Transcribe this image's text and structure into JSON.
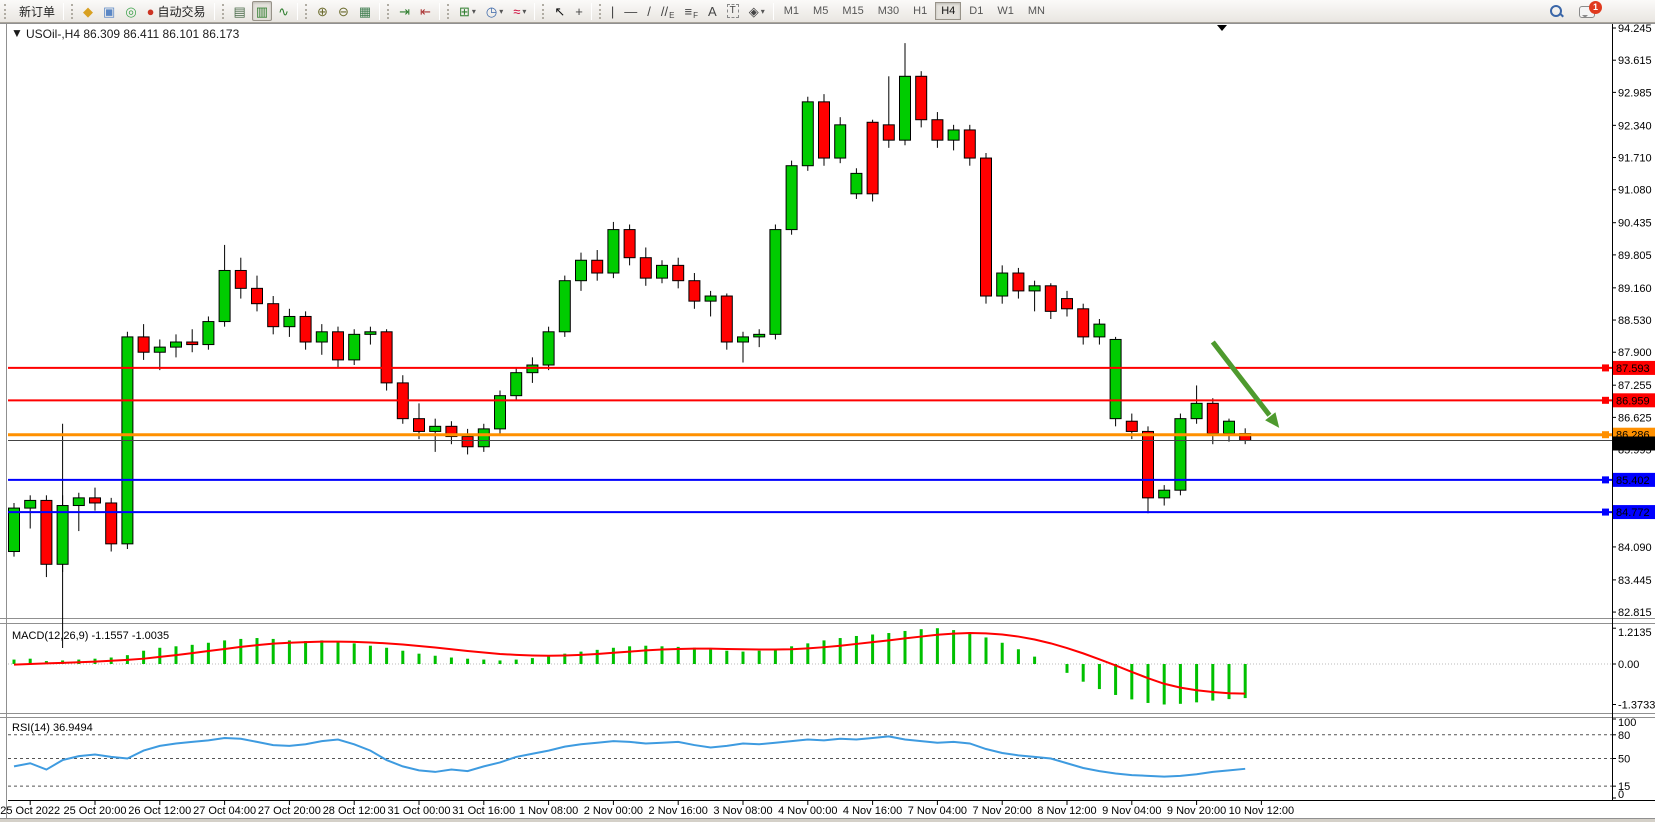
{
  "toolbar": {
    "new_order_label": "新订单",
    "autotrading_label": "自动交易",
    "groups": [
      {
        "items": [
          {
            "name": "new-order",
            "glyph": "",
            "label": "新订单"
          }
        ]
      },
      {
        "items": [
          {
            "name": "quotes-icon",
            "glyph": "◆",
            "color": "#d8a021"
          },
          {
            "name": "market-watch-icon",
            "glyph": "▣",
            "color": "#5b87c5"
          },
          {
            "name": "signals-icon",
            "glyph": "◎",
            "color": "#3fa34d"
          },
          {
            "name": "autotrading-button",
            "glyph": "●",
            "color": "#cc3322",
            "label": "自动交易"
          }
        ]
      },
      {
        "items": [
          {
            "name": "bar-chart-icon",
            "glyph": "▤",
            "color": "#4a6b4a"
          },
          {
            "name": "candlestick-chart-icon",
            "glyph": "▥",
            "color": "#2d7d2d",
            "active": true
          },
          {
            "name": "line-chart-icon",
            "glyph": "∿",
            "color": "#2d7d2d"
          }
        ]
      },
      {
        "items": [
          {
            "name": "zoom-in-icon",
            "glyph": "⊕",
            "color": "#6b6b2d"
          },
          {
            "name": "zoom-out-icon",
            "glyph": "⊖",
            "color": "#6b6b2d"
          },
          {
            "name": "tile-windows-icon",
            "glyph": "▦",
            "color": "#3f7d4f"
          }
        ]
      },
      {
        "items": [
          {
            "name": "auto-scroll-icon",
            "glyph": "⇥",
            "color": "#2d7d2d"
          },
          {
            "name": "chart-shift-icon",
            "glyph": "⇤",
            "color": "#a33"
          }
        ]
      },
      {
        "items": [
          {
            "name": "new-chart-button",
            "glyph": "⊞",
            "color": "#2d7d2d",
            "dropdown": true
          },
          {
            "name": "periods-button",
            "glyph": "◷",
            "color": "#3a66a8",
            "dropdown": true
          },
          {
            "name": "indicators-button",
            "glyph": "≈",
            "color": "#c03",
            "dropdown": true
          }
        ]
      },
      {
        "items": [
          {
            "name": "cursor-tool",
            "glyph": "↖",
            "color": "#111"
          },
          {
            "name": "crosshair-tool",
            "glyph": "+",
            "color": "#444"
          }
        ]
      },
      {
        "items": [
          {
            "name": "vertical-line-tool",
            "glyph": "|",
            "color": "#444"
          },
          {
            "name": "horizontal-line-tool",
            "glyph": "—",
            "color": "#444"
          },
          {
            "name": "trendline-tool",
            "glyph": "/",
            "color": "#444"
          },
          {
            "name": "equidistant-channel-tool",
            "glyph": "//",
            "color": "#444",
            "sub": "E"
          },
          {
            "name": "fibonacci-tool",
            "glyph": "≡",
            "color": "#444",
            "sub": "F"
          },
          {
            "name": "text-tool",
            "glyph": "A",
            "color": "#444"
          },
          {
            "name": "text-label-tool",
            "glyph": "T",
            "color": "#444",
            "boxed": true
          },
          {
            "name": "arrows-tool",
            "glyph": "◈",
            "color": "#444",
            "dropdown": true
          }
        ]
      }
    ],
    "timeframes": [
      "M1",
      "M5",
      "M15",
      "M30",
      "H1",
      "H4",
      "D1",
      "W1",
      "MN"
    ],
    "active_timeframe": "H4",
    "chat_badge": "1"
  },
  "chart": {
    "title_text": "USOil-,H4  86.309 86.411 86.101 86.173",
    "symbol": "USOil-",
    "timeframe": "H4"
  },
  "chart_data": {
    "type": "candlestick+indicators",
    "symbol": "USOil-",
    "period": "H4",
    "current": {
      "open": 86.309,
      "high": 86.411,
      "low": 86.101,
      "close": 86.173
    },
    "price_axis": {
      "ticks": [
        94.245,
        93.615,
        92.985,
        92.34,
        91.71,
        91.08,
        90.435,
        89.805,
        89.16,
        88.53,
        87.9,
        87.255,
        86.625,
        85.995,
        85.36,
        84.725,
        84.09,
        83.445,
        82.815
      ],
      "max": 94.245,
      "min": 82.815
    },
    "time_labels": [
      "25 Oct 2022",
      "25 Oct 20:00",
      "26 Oct 12:00",
      "27 Oct 04:00",
      "27 Oct 20:00",
      "28 Oct 12:00",
      "31 Oct 00:00",
      "31 Oct 16:00",
      "1 Nov 08:00",
      "2 Nov 00:00",
      "2 Nov 16:00",
      "3 Nov 08:00",
      "4 Nov 00:00",
      "4 Nov 16:00",
      "7 Nov 04:00",
      "7 Nov 20:00",
      "8 Nov 12:00",
      "9 Nov 04:00",
      "9 Nov 20:00",
      "10 Nov 12:00"
    ],
    "candles": [
      [
        84.0,
        84.95,
        83.9,
        84.85
      ],
      [
        84.85,
        85.1,
        84.45,
        85.0
      ],
      [
        85.0,
        85.1,
        83.5,
        83.75
      ],
      [
        83.75,
        85.1,
        83.6,
        84.9
      ],
      [
        84.9,
        85.15,
        84.4,
        85.05
      ],
      [
        85.05,
        85.25,
        84.8,
        84.95
      ],
      [
        84.95,
        85.05,
        84.0,
        84.15
      ],
      [
        84.15,
        88.3,
        84.05,
        88.2
      ],
      [
        88.2,
        88.45,
        87.75,
        87.9
      ],
      [
        87.9,
        88.15,
        87.55,
        88.0
      ],
      [
        88.0,
        88.25,
        87.8,
        88.1
      ],
      [
        88.1,
        88.35,
        87.9,
        88.05
      ],
      [
        88.05,
        88.6,
        87.95,
        88.5
      ],
      [
        88.5,
        90.0,
        88.4,
        89.5
      ],
      [
        89.5,
        89.75,
        88.95,
        89.15
      ],
      [
        89.15,
        89.4,
        88.7,
        88.85
      ],
      [
        88.85,
        89.0,
        88.25,
        88.4
      ],
      [
        88.4,
        88.75,
        88.2,
        88.6
      ],
      [
        88.6,
        88.7,
        87.95,
        88.1
      ],
      [
        88.1,
        88.45,
        87.85,
        88.3
      ],
      [
        88.3,
        88.4,
        87.6,
        87.75
      ],
      [
        87.75,
        88.35,
        87.65,
        88.25
      ],
      [
        88.25,
        88.4,
        88.05,
        88.3
      ],
      [
        88.3,
        88.35,
        87.15,
        87.3
      ],
      [
        87.3,
        87.45,
        86.5,
        86.6
      ],
      [
        86.6,
        86.9,
        86.2,
        86.35
      ],
      [
        86.35,
        86.6,
        85.95,
        86.45
      ],
      [
        86.45,
        86.55,
        86.1,
        86.25
      ],
      [
        86.25,
        86.4,
        85.9,
        86.05
      ],
      [
        86.05,
        86.5,
        85.95,
        86.4
      ],
      [
        86.4,
        87.15,
        86.3,
        87.05
      ],
      [
        87.05,
        87.6,
        86.95,
        87.5
      ],
      [
        87.5,
        87.8,
        87.3,
        87.65
      ],
      [
        87.65,
        88.4,
        87.55,
        88.3
      ],
      [
        88.3,
        89.4,
        88.2,
        89.3
      ],
      [
        89.3,
        89.85,
        89.1,
        89.7
      ],
      [
        89.7,
        89.9,
        89.3,
        89.45
      ],
      [
        89.45,
        90.45,
        89.35,
        90.3
      ],
      [
        90.3,
        90.4,
        89.6,
        89.75
      ],
      [
        89.75,
        89.95,
        89.2,
        89.35
      ],
      [
        89.35,
        89.7,
        89.25,
        89.6
      ],
      [
        89.6,
        89.75,
        89.15,
        89.3
      ],
      [
        89.3,
        89.45,
        88.75,
        88.9
      ],
      [
        88.9,
        89.1,
        88.6,
        89.0
      ],
      [
        89.0,
        89.05,
        87.95,
        88.1
      ],
      [
        88.1,
        88.3,
        87.7,
        88.2
      ],
      [
        88.2,
        88.35,
        88.0,
        88.25
      ],
      [
        88.25,
        90.4,
        88.15,
        90.3
      ],
      [
        90.3,
        91.65,
        90.2,
        91.55
      ],
      [
        91.55,
        92.9,
        91.45,
        92.8
      ],
      [
        92.8,
        92.95,
        91.55,
        91.7
      ],
      [
        91.7,
        92.5,
        91.6,
        92.35
      ],
      [
        91.0,
        91.5,
        90.9,
        91.4
      ],
      [
        92.4,
        92.45,
        90.85,
        91.0
      ],
      [
        92.35,
        93.3,
        91.9,
        92.05
      ],
      [
        92.05,
        93.95,
        91.95,
        93.3
      ],
      [
        93.3,
        93.4,
        92.3,
        92.45
      ],
      [
        92.45,
        92.6,
        91.9,
        92.05
      ],
      [
        92.05,
        92.35,
        91.85,
        92.25
      ],
      [
        92.25,
        92.35,
        91.55,
        91.7
      ],
      [
        91.7,
        91.8,
        88.85,
        89.0
      ],
      [
        89.0,
        89.6,
        88.85,
        89.45
      ],
      [
        89.45,
        89.55,
        88.95,
        89.1
      ],
      [
        89.1,
        89.3,
        88.7,
        89.2
      ],
      [
        89.2,
        89.25,
        88.55,
        88.7
      ],
      [
        88.95,
        89.1,
        88.6,
        88.75
      ],
      [
        88.75,
        88.85,
        88.05,
        88.2
      ],
      [
        88.2,
        88.55,
        88.05,
        88.45
      ],
      [
        86.6,
        88.2,
        86.45,
        88.15
      ],
      [
        86.55,
        86.7,
        86.2,
        86.35
      ],
      [
        86.35,
        86.45,
        84.75,
        85.05
      ],
      [
        85.05,
        85.3,
        84.9,
        85.2
      ],
      [
        85.2,
        86.7,
        85.1,
        86.6
      ],
      [
        86.6,
        87.25,
        86.5,
        86.9
      ],
      [
        86.9,
        87.0,
        86.1,
        86.31
      ],
      [
        86.31,
        86.6,
        86.15,
        86.55
      ],
      [
        86.309,
        86.411,
        86.101,
        86.173
      ]
    ],
    "hlines": [
      {
        "price": 87.593,
        "label": "87.593",
        "color": "#ff0000",
        "width": 2
      },
      {
        "price": 86.959,
        "label": "86.959",
        "color": "#ff0000",
        "width": 2
      },
      {
        "price": 86.286,
        "label": "86.286",
        "color": "#ff9000",
        "width": 3
      },
      {
        "price": 85.402,
        "label": "85.402",
        "color": "#0000ff",
        "width": 2
      },
      {
        "price": 84.772,
        "label": "84.772",
        "color": "#0000ff",
        "width": 2
      }
    ],
    "current_price_line": {
      "price": 86.173,
      "label": "86.173",
      "color": "#000000"
    },
    "annotations": [
      {
        "type": "arrow",
        "from": {
          "index": 74.0,
          "price": 88.1
        },
        "to": {
          "index": 78.1,
          "price": 86.42
        },
        "color": "#4e9a2e"
      },
      {
        "type": "vertical-line",
        "index": 3,
        "top_price": 86.5
      }
    ],
    "macd": {
      "label_text": "MACD(12,26,9) -1.1557 -1.0035",
      "name": "MACD(12,26,9)",
      "values": [
        -1.1557,
        -1.0035
      ],
      "axis_ticks": [
        "1.2135",
        "0.00",
        "-1.3733"
      ],
      "histogram_color": "#00c000",
      "signal_color": "#ff0000",
      "histogram": [
        0.15,
        0.18,
        0.1,
        0.12,
        0.15,
        0.18,
        0.22,
        0.3,
        0.45,
        0.55,
        0.6,
        0.65,
        0.72,
        0.8,
        0.85,
        0.88,
        0.85,
        0.8,
        0.78,
        0.8,
        0.75,
        0.7,
        0.62,
        0.55,
        0.45,
        0.35,
        0.28,
        0.22,
        0.18,
        0.15,
        0.12,
        0.15,
        0.2,
        0.28,
        0.35,
        0.42,
        0.48,
        0.55,
        0.6,
        0.62,
        0.6,
        0.58,
        0.55,
        0.5,
        0.45,
        0.42,
        0.45,
        0.52,
        0.6,
        0.7,
        0.8,
        0.88,
        0.95,
        1.0,
        1.05,
        1.12,
        1.18,
        1.2135,
        1.15,
        1.05,
        0.9,
        0.72,
        0.5,
        0.25,
        0.0,
        -0.3,
        -0.6,
        -0.85,
        -1.05,
        -1.2,
        -1.32,
        -1.3733,
        -1.35,
        -1.3,
        -1.24,
        -1.19,
        -1.1557
      ],
      "signal": [
        -0.02,
        0.0,
        0.02,
        0.04,
        0.06,
        0.08,
        0.11,
        0.14,
        0.18,
        0.24,
        0.3,
        0.37,
        0.44,
        0.51,
        0.58,
        0.64,
        0.69,
        0.72,
        0.74,
        0.76,
        0.76,
        0.75,
        0.73,
        0.7,
        0.66,
        0.61,
        0.56,
        0.5,
        0.44,
        0.39,
        0.34,
        0.31,
        0.29,
        0.28,
        0.29,
        0.31,
        0.34,
        0.38,
        0.42,
        0.46,
        0.49,
        0.51,
        0.52,
        0.52,
        0.51,
        0.5,
        0.49,
        0.49,
        0.5,
        0.53,
        0.57,
        0.62,
        0.68,
        0.74,
        0.8,
        0.87,
        0.93,
        0.99,
        1.03,
        1.05,
        1.04,
        1.0,
        0.93,
        0.83,
        0.7,
        0.54,
        0.36,
        0.16,
        -0.05,
        -0.27,
        -0.48,
        -0.67,
        -0.8,
        -0.89,
        -0.95,
        -0.99,
        -1.0035
      ]
    },
    "rsi": {
      "label_text": "RSI(14) 36.9494",
      "name": "RSI(14)",
      "value": 36.9494,
      "line_color": "#3e9be0",
      "levels": [
        80,
        50,
        15
      ],
      "axis_ticks": [
        "100",
        "80",
        "50",
        "15",
        "0"
      ],
      "values": [
        40,
        44,
        36,
        48,
        53,
        55,
        52,
        50,
        60,
        66,
        69,
        71,
        73,
        76,
        75,
        71,
        67,
        66,
        68,
        72,
        74,
        68,
        60,
        48,
        40,
        35,
        33,
        36,
        34,
        40,
        45,
        52,
        56,
        60,
        65,
        68,
        70,
        72,
        71,
        69,
        70,
        71,
        67,
        64,
        66,
        69,
        68,
        70,
        72,
        74,
        73,
        75,
        74,
        76,
        78,
        74,
        72,
        70,
        71,
        69,
        62,
        57,
        54,
        52,
        50,
        44,
        38,
        34,
        31,
        29,
        28,
        27,
        28,
        30,
        33,
        35,
        36.95
      ]
    },
    "colors": {
      "bull": "#00cc00",
      "bear": "#ff0000",
      "wick": "#000000",
      "background": "#ffffff"
    }
  }
}
